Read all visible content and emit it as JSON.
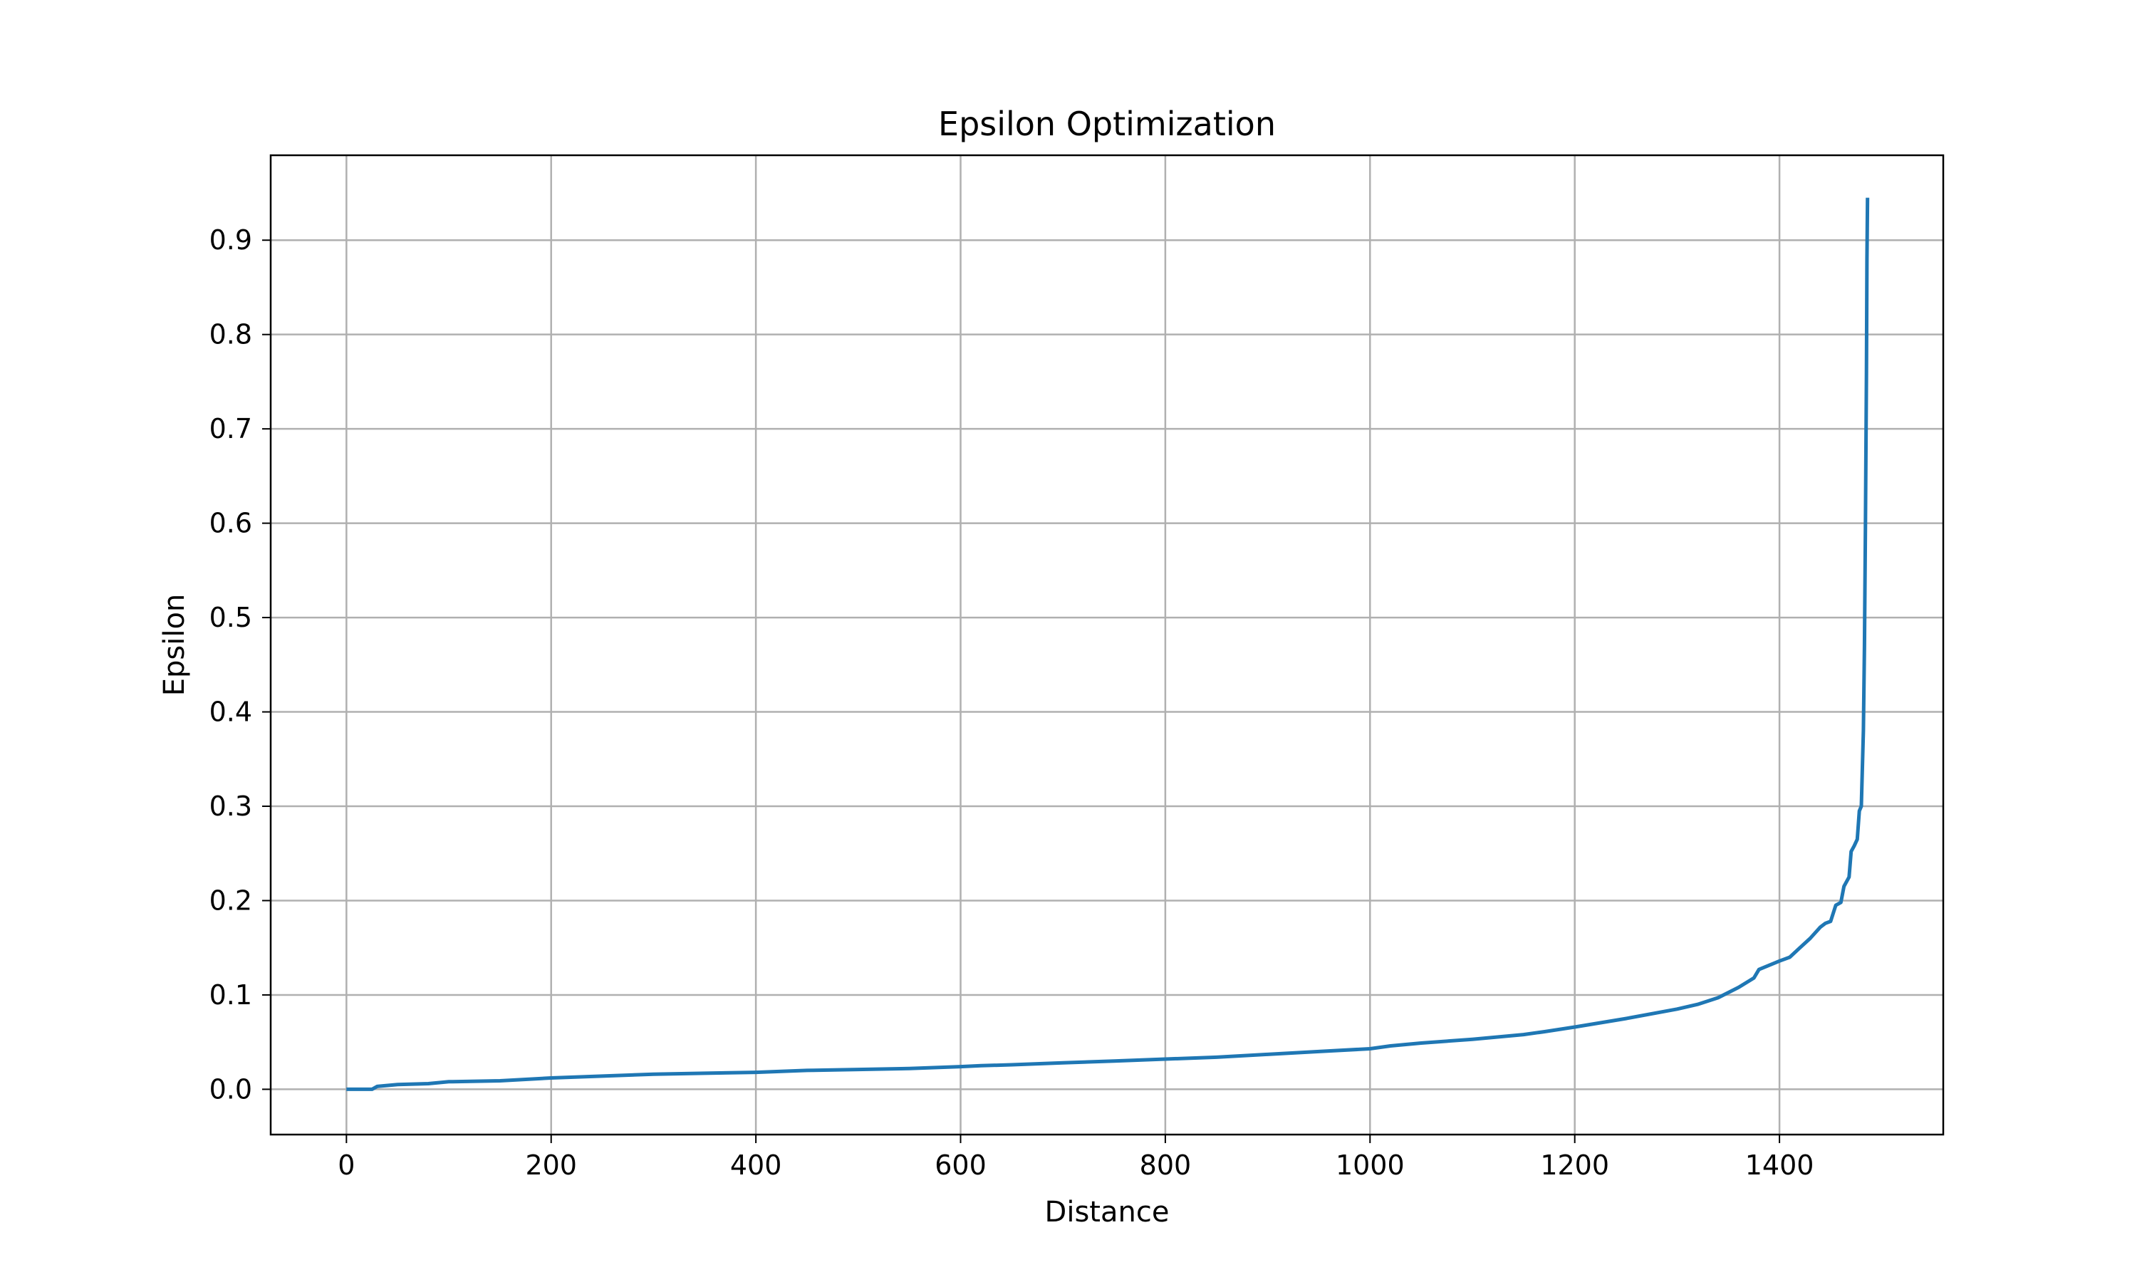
{
  "chart_data": {
    "type": "line",
    "title": "Epsilon Optimization",
    "xlabel": "Distance",
    "ylabel": "Epsilon",
    "xlim": [
      -74,
      1560
    ],
    "ylim": [
      -0.048,
      0.99
    ],
    "xticks": [
      0,
      200,
      400,
      600,
      800,
      1000,
      1200,
      1400
    ],
    "yticks": [
      0.0,
      0.1,
      0.2,
      0.3,
      0.4,
      0.5,
      0.6,
      0.7,
      0.8,
      0.9
    ],
    "grid": true,
    "legend": "none",
    "series": [
      {
        "color": "#1f77b4",
        "x": [
          0,
          25,
          30,
          50,
          80,
          100,
          150,
          200,
          250,
          300,
          350,
          400,
          450,
          500,
          550,
          600,
          620,
          650,
          700,
          750,
          800,
          850,
          900,
          950,
          1000,
          1020,
          1050,
          1100,
          1150,
          1170,
          1200,
          1250,
          1300,
          1320,
          1340,
          1360,
          1375,
          1380,
          1400,
          1410,
          1420,
          1430,
          1440,
          1445,
          1450,
          1455,
          1460,
          1463,
          1468,
          1470,
          1473,
          1476,
          1478,
          1480,
          1482,
          1483,
          1484,
          1485,
          1485.5,
          1486
        ],
        "y": [
          0.0,
          0.0,
          0.003,
          0.005,
          0.006,
          0.008,
          0.009,
          0.012,
          0.014,
          0.016,
          0.017,
          0.018,
          0.02,
          0.021,
          0.022,
          0.024,
          0.025,
          0.026,
          0.028,
          0.03,
          0.032,
          0.034,
          0.037,
          0.04,
          0.043,
          0.046,
          0.049,
          0.053,
          0.058,
          0.061,
          0.066,
          0.075,
          0.085,
          0.09,
          0.097,
          0.108,
          0.118,
          0.127,
          0.136,
          0.14,
          0.15,
          0.16,
          0.172,
          0.176,
          0.178,
          0.195,
          0.198,
          0.215,
          0.225,
          0.252,
          0.258,
          0.265,
          0.295,
          0.3,
          0.38,
          0.47,
          0.6,
          0.76,
          0.88,
          0.945
        ]
      }
    ]
  }
}
